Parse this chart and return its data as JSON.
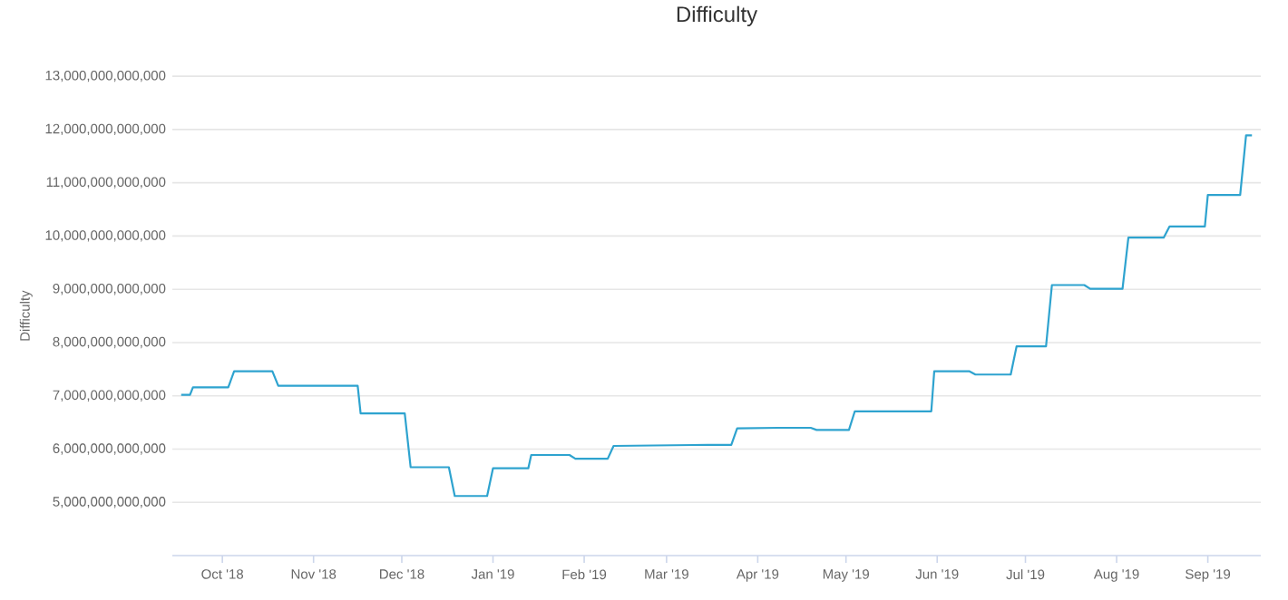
{
  "chart_data": {
    "type": "line",
    "title": "Difficulty",
    "ylabel": "Difficulty",
    "x": [
      "2018-09-17",
      "2018-09-20",
      "2018-09-21",
      "2018-10-03",
      "2018-10-05",
      "2018-10-18",
      "2018-10-20",
      "2018-11-16",
      "2018-11-17",
      "2018-12-02",
      "2018-12-04",
      "2018-12-17",
      "2018-12-19",
      "2018-12-30",
      "2019-01-01",
      "2019-01-13",
      "2019-01-14",
      "2019-01-27",
      "2019-01-29",
      "2019-02-09",
      "2019-02-11",
      "2019-03-15",
      "2019-03-23",
      "2019-03-25",
      "2019-04-08",
      "2019-04-19",
      "2019-04-21",
      "2019-05-02",
      "2019-05-04",
      "2019-05-30",
      "2019-05-31",
      "2019-06-12",
      "2019-06-14",
      "2019-06-26",
      "2019-06-28",
      "2019-07-08",
      "2019-07-10",
      "2019-07-21",
      "2019-07-23",
      "2019-08-03",
      "2019-08-05",
      "2019-08-17",
      "2019-08-19",
      "2019-08-31",
      "2019-09-01",
      "2019-09-12",
      "2019-09-14",
      "2019-09-16"
    ],
    "series": [
      {
        "color": "#2ea3cf",
        "values": [
          7020000000000,
          7020000000000,
          7160000000000,
          7160000000000,
          7460000000000,
          7460000000000,
          7190000000000,
          7190000000000,
          6670000000000,
          6670000000000,
          5660000000000,
          5660000000000,
          5120000000000,
          5120000000000,
          5640000000000,
          5640000000000,
          5890000000000,
          5890000000000,
          5820000000000,
          5820000000000,
          6060000000000,
          6080000000000,
          6080000000000,
          6390000000000,
          6400000000000,
          6400000000000,
          6360000000000,
          6360000000000,
          6710000000000,
          6710000000000,
          7460000000000,
          7460000000000,
          7400000000000,
          7400000000000,
          7930000000000,
          7930000000000,
          9080000000000,
          9080000000000,
          9010000000000,
          9010000000000,
          9970000000000,
          9970000000000,
          10180000000000,
          10180000000000,
          10770000000000,
          10770000000000,
          11890000000000,
          11890000000000
        ]
      }
    ],
    "xlim": [
      "2018-09-14",
      "2019-09-19"
    ],
    "xticks": [
      {
        "value": "2018-10-01",
        "label": "Oct '18"
      },
      {
        "value": "2018-11-01",
        "label": "Nov '18"
      },
      {
        "value": "2018-12-01",
        "label": "Dec '18"
      },
      {
        "value": "2019-01-01",
        "label": "Jan '19"
      },
      {
        "value": "2019-02-01",
        "label": "Feb '19"
      },
      {
        "value": "2019-03-01",
        "label": "Mar '19"
      },
      {
        "value": "2019-04-01",
        "label": "Apr '19"
      },
      {
        "value": "2019-05-01",
        "label": "May '19"
      },
      {
        "value": "2019-06-01",
        "label": "Jun '19"
      },
      {
        "value": "2019-07-01",
        "label": "Jul '19"
      },
      {
        "value": "2019-08-01",
        "label": "Aug '19"
      },
      {
        "value": "2019-09-01",
        "label": "Sep '19"
      }
    ],
    "ylim": [
      4000000000000,
      13000000000000
    ],
    "yticks": [
      {
        "value": 5000000000000,
        "label": "5,000,000,000,000"
      },
      {
        "value": 6000000000000,
        "label": "6,000,000,000,000"
      },
      {
        "value": 7000000000000,
        "label": "7,000,000,000,000"
      },
      {
        "value": 8000000000000,
        "label": "8,000,000,000,000"
      },
      {
        "value": 9000000000000,
        "label": "9,000,000,000,000"
      },
      {
        "value": 10000000000000,
        "label": "10,000,000,000,000"
      },
      {
        "value": 11000000000000,
        "label": "11,000,000,000,000"
      },
      {
        "value": 12000000000000,
        "label": "12,000,000,000,000"
      },
      {
        "value": 13000000000000,
        "label": "13,000,000,000,000"
      }
    ],
    "grid": "y",
    "legend": false,
    "marker": "none",
    "line_style": "solid"
  }
}
